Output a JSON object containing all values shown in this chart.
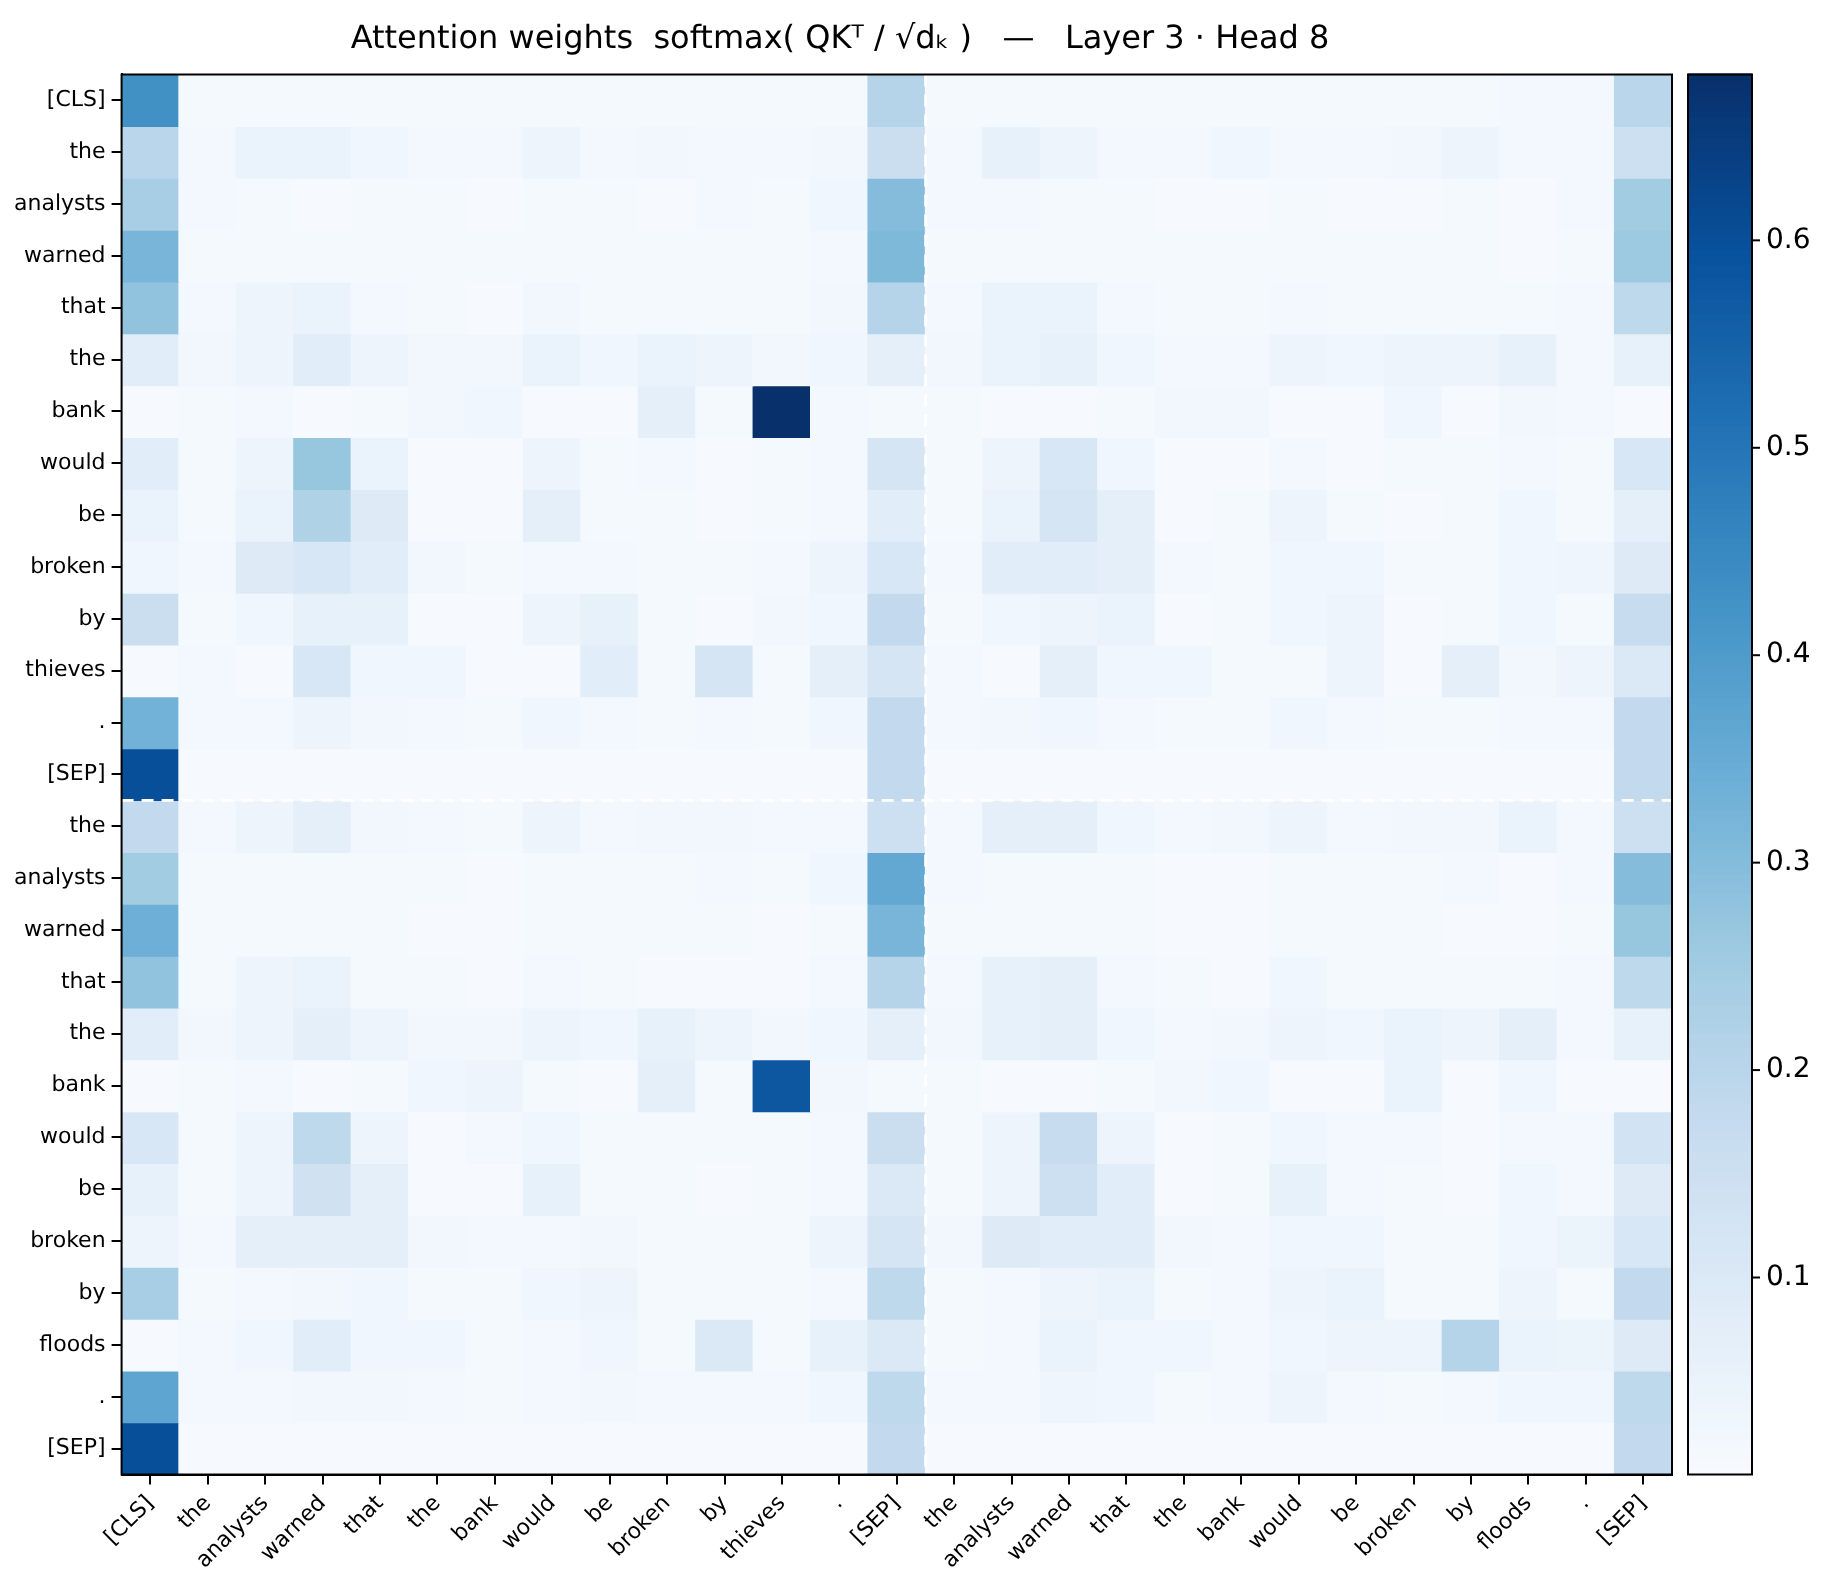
{
  "chart_data": {
    "type": "heatmap",
    "title": "Attention weights  softmax( QKᵀ / √dₖ )   —   Layer 3 · Head 8",
    "categories": [
      "[CLS]",
      "the",
      "analysts",
      "warned",
      "that",
      "the",
      "bank",
      "would",
      "be",
      "broken",
      "by",
      "thieves",
      ".",
      "[SEP]",
      "the",
      "analysts",
      "warned",
      "that",
      "the",
      "bank",
      "would",
      "be",
      "broken",
      "by",
      "floods",
      ".",
      "[SEP]"
    ],
    "y_categories": [
      "[CLS]",
      "the",
      "analysts",
      "warned",
      "that",
      "the",
      "bank",
      "would",
      "be",
      "broken",
      "by",
      "thieves",
      ".",
      "[SEP]",
      "the",
      "analysts",
      "warned",
      "that",
      "the",
      "bank",
      "would",
      "be",
      "broken",
      "by",
      "floods",
      ".",
      "[SEP]"
    ],
    "cells": [
      [
        0.43,
        0.015,
        0.015,
        0.015,
        0.015,
        0.015,
        0.015,
        0.015,
        0.015,
        0.015,
        0.015,
        0.015,
        0.015,
        0.21,
        0.015,
        0.015,
        0.015,
        0.015,
        0.015,
        0.015,
        0.015,
        0.015,
        0.015,
        0.015,
        0.02,
        0.02,
        0.2
      ],
      [
        0.2,
        0.02,
        0.05,
        0.05,
        0.03,
        0.02,
        0.02,
        0.04,
        0.02,
        0.025,
        0.02,
        0.02,
        0.025,
        0.16,
        0.02,
        0.06,
        0.04,
        0.02,
        0.02,
        0.03,
        0.02,
        0.02,
        0.025,
        0.04,
        0.02,
        0.02,
        0.15
      ],
      [
        0.24,
        0.02,
        0.015,
        0.01,
        0.015,
        0.015,
        0.01,
        0.015,
        0.015,
        0.01,
        0.02,
        0.015,
        0.03,
        0.3,
        0.02,
        0.02,
        0.015,
        0.015,
        0.01,
        0.01,
        0.015,
        0.01,
        0.01,
        0.015,
        0.01,
        0.02,
        0.25
      ],
      [
        0.32,
        0.015,
        0.015,
        0.015,
        0.015,
        0.015,
        0.015,
        0.015,
        0.015,
        0.015,
        0.015,
        0.015,
        0.02,
        0.31,
        0.015,
        0.015,
        0.015,
        0.015,
        0.015,
        0.015,
        0.015,
        0.015,
        0.015,
        0.015,
        0.01,
        0.015,
        0.26
      ],
      [
        0.28,
        0.02,
        0.04,
        0.05,
        0.02,
        0.015,
        0.01,
        0.025,
        0.015,
        0.015,
        0.015,
        0.015,
        0.025,
        0.21,
        0.02,
        0.05,
        0.05,
        0.02,
        0.015,
        0.015,
        0.02,
        0.015,
        0.015,
        0.015,
        0.015,
        0.02,
        0.19
      ],
      [
        0.08,
        0.025,
        0.04,
        0.08,
        0.04,
        0.025,
        0.025,
        0.05,
        0.03,
        0.05,
        0.04,
        0.025,
        0.03,
        0.07,
        0.025,
        0.05,
        0.06,
        0.03,
        0.02,
        0.02,
        0.04,
        0.03,
        0.04,
        0.04,
        0.06,
        0.02,
        0.06
      ],
      [
        0.01,
        0.015,
        0.02,
        0.01,
        0.015,
        0.025,
        0.03,
        0.01,
        0.01,
        0.07,
        0.015,
        0.68,
        0.02,
        0.015,
        0.015,
        0.01,
        0.01,
        0.015,
        0.025,
        0.025,
        0.01,
        0.01,
        0.03,
        0.01,
        0.025,
        0.02,
        0.01
      ],
      [
        0.08,
        0.015,
        0.04,
        0.27,
        0.05,
        0.01,
        0.01,
        0.04,
        0.015,
        0.02,
        0.01,
        0.015,
        0.02,
        0.12,
        0.015,
        0.04,
        0.11,
        0.03,
        0.01,
        0.01,
        0.02,
        0.01,
        0.015,
        0.015,
        0.02,
        0.015,
        0.11
      ],
      [
        0.05,
        0.015,
        0.05,
        0.22,
        0.09,
        0.01,
        0.01,
        0.07,
        0.015,
        0.015,
        0.01,
        0.015,
        0.02,
        0.08,
        0.015,
        0.05,
        0.12,
        0.07,
        0.01,
        0.015,
        0.04,
        0.015,
        0.01,
        0.015,
        0.03,
        0.015,
        0.07
      ],
      [
        0.03,
        0.02,
        0.09,
        0.11,
        0.08,
        0.025,
        0.015,
        0.02,
        0.02,
        0.015,
        0.015,
        0.02,
        0.04,
        0.11,
        0.02,
        0.08,
        0.08,
        0.07,
        0.02,
        0.015,
        0.03,
        0.03,
        0.015,
        0.015,
        0.03,
        0.035,
        0.09
      ],
      [
        0.16,
        0.015,
        0.03,
        0.06,
        0.06,
        0.01,
        0.01,
        0.04,
        0.06,
        0.015,
        0.01,
        0.025,
        0.03,
        0.18,
        0.015,
        0.03,
        0.04,
        0.05,
        0.01,
        0.015,
        0.03,
        0.04,
        0.01,
        0.015,
        0.03,
        0.015,
        0.17
      ],
      [
        0.01,
        0.02,
        0.01,
        0.11,
        0.03,
        0.03,
        0.01,
        0.01,
        0.08,
        0.015,
        0.12,
        0.015,
        0.07,
        0.12,
        0.02,
        0.01,
        0.07,
        0.03,
        0.03,
        0.015,
        0.015,
        0.04,
        0.01,
        0.07,
        0.025,
        0.04,
        0.1
      ],
      [
        0.33,
        0.02,
        0.02,
        0.04,
        0.025,
        0.02,
        0.015,
        0.03,
        0.02,
        0.015,
        0.02,
        0.015,
        0.03,
        0.18,
        0.02,
        0.025,
        0.03,
        0.02,
        0.015,
        0.015,
        0.03,
        0.02,
        0.015,
        0.015,
        0.02,
        0.02,
        0.18
      ],
      [
        0.6,
        0.01,
        0.01,
        0.01,
        0.01,
        0.01,
        0.01,
        0.01,
        0.01,
        0.01,
        0.01,
        0.01,
        0.01,
        0.18,
        0.01,
        0.01,
        0.01,
        0.01,
        0.01,
        0.01,
        0.01,
        0.01,
        0.01,
        0.01,
        0.01,
        0.01,
        0.18
      ],
      [
        0.18,
        0.02,
        0.04,
        0.07,
        0.025,
        0.02,
        0.015,
        0.04,
        0.02,
        0.025,
        0.025,
        0.02,
        0.02,
        0.15,
        0.02,
        0.07,
        0.07,
        0.03,
        0.02,
        0.025,
        0.04,
        0.02,
        0.025,
        0.025,
        0.05,
        0.02,
        0.15
      ],
      [
        0.25,
        0.015,
        0.015,
        0.015,
        0.015,
        0.015,
        0.01,
        0.015,
        0.015,
        0.015,
        0.02,
        0.015,
        0.03,
        0.36,
        0.02,
        0.015,
        0.015,
        0.015,
        0.01,
        0.01,
        0.015,
        0.015,
        0.015,
        0.02,
        0.01,
        0.02,
        0.3
      ],
      [
        0.34,
        0.015,
        0.015,
        0.015,
        0.015,
        0.01,
        0.01,
        0.015,
        0.015,
        0.015,
        0.015,
        0.01,
        0.015,
        0.32,
        0.015,
        0.015,
        0.015,
        0.015,
        0.01,
        0.01,
        0.015,
        0.015,
        0.015,
        0.01,
        0.01,
        0.015,
        0.27
      ],
      [
        0.28,
        0.015,
        0.04,
        0.05,
        0.015,
        0.015,
        0.01,
        0.02,
        0.015,
        0.01,
        0.01,
        0.01,
        0.02,
        0.21,
        0.02,
        0.06,
        0.07,
        0.02,
        0.015,
        0.01,
        0.03,
        0.015,
        0.015,
        0.015,
        0.015,
        0.02,
        0.19
      ],
      [
        0.08,
        0.025,
        0.04,
        0.07,
        0.04,
        0.025,
        0.025,
        0.04,
        0.03,
        0.06,
        0.04,
        0.025,
        0.03,
        0.07,
        0.025,
        0.06,
        0.07,
        0.03,
        0.02,
        0.025,
        0.04,
        0.03,
        0.05,
        0.04,
        0.07,
        0.02,
        0.06
      ],
      [
        0.01,
        0.015,
        0.02,
        0.01,
        0.015,
        0.03,
        0.04,
        0.015,
        0.01,
        0.07,
        0.015,
        0.58,
        0.025,
        0.015,
        0.015,
        0.01,
        0.01,
        0.015,
        0.025,
        0.03,
        0.01,
        0.01,
        0.05,
        0.01,
        0.03,
        0.01,
        0.01
      ],
      [
        0.11,
        0.015,
        0.04,
        0.19,
        0.04,
        0.01,
        0.02,
        0.03,
        0.015,
        0.015,
        0.015,
        0.015,
        0.02,
        0.16,
        0.015,
        0.04,
        0.17,
        0.04,
        0.01,
        0.015,
        0.03,
        0.02,
        0.02,
        0.01,
        0.02,
        0.02,
        0.13
      ],
      [
        0.06,
        0.015,
        0.04,
        0.14,
        0.07,
        0.01,
        0.01,
        0.06,
        0.015,
        0.015,
        0.01,
        0.015,
        0.02,
        0.1,
        0.015,
        0.04,
        0.15,
        0.08,
        0.01,
        0.015,
        0.06,
        0.02,
        0.015,
        0.01,
        0.03,
        0.02,
        0.09
      ],
      [
        0.04,
        0.02,
        0.07,
        0.07,
        0.07,
        0.025,
        0.02,
        0.02,
        0.025,
        0.015,
        0.015,
        0.015,
        0.04,
        0.12,
        0.025,
        0.09,
        0.08,
        0.08,
        0.025,
        0.02,
        0.03,
        0.03,
        0.015,
        0.015,
        0.03,
        0.045,
        0.11
      ],
      [
        0.24,
        0.015,
        0.02,
        0.025,
        0.03,
        0.015,
        0.015,
        0.03,
        0.04,
        0.015,
        0.015,
        0.015,
        0.02,
        0.19,
        0.015,
        0.02,
        0.04,
        0.05,
        0.015,
        0.02,
        0.04,
        0.05,
        0.015,
        0.015,
        0.04,
        0.015,
        0.18
      ],
      [
        0.01,
        0.02,
        0.03,
        0.08,
        0.03,
        0.03,
        0.015,
        0.02,
        0.03,
        0.015,
        0.1,
        0.015,
        0.06,
        0.1,
        0.015,
        0.02,
        0.05,
        0.03,
        0.03,
        0.02,
        0.03,
        0.04,
        0.04,
        0.21,
        0.05,
        0.045,
        0.09
      ],
      [
        0.37,
        0.02,
        0.02,
        0.025,
        0.025,
        0.02,
        0.015,
        0.02,
        0.025,
        0.02,
        0.02,
        0.02,
        0.03,
        0.19,
        0.02,
        0.02,
        0.035,
        0.03,
        0.015,
        0.02,
        0.04,
        0.02,
        0.015,
        0.02,
        0.03,
        0.03,
        0.19
      ],
      [
        0.6,
        0.01,
        0.01,
        0.01,
        0.01,
        0.01,
        0.01,
        0.01,
        0.01,
        0.01,
        0.01,
        0.01,
        0.01,
        0.18,
        0.01,
        0.01,
        0.01,
        0.01,
        0.01,
        0.01,
        0.01,
        0.01,
        0.01,
        0.01,
        0.01,
        0.01,
        0.18
      ]
    ],
    "clim": [
      0.005,
      0.68
    ],
    "cticks": [
      0.1,
      0.2,
      0.3,
      0.4,
      0.5,
      0.6
    ]
  }
}
